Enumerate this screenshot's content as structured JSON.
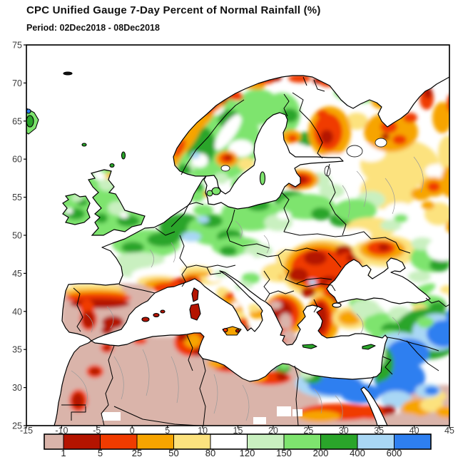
{
  "header": {
    "title": "CPC Unified Gauge 7-Day Percent of Normal Rainfall (%)",
    "period": "Period: 02Dec2018 - 08Dec2018"
  },
  "axes": {
    "x_tick_labels": [
      "-15",
      "-10",
      "-5",
      "0",
      "5",
      "10",
      "15",
      "20",
      "25",
      "30",
      "35",
      "40",
      "45"
    ],
    "y_tick_labels": [
      "75",
      "70",
      "65",
      "60",
      "55",
      "50",
      "45",
      "40",
      "35",
      "30",
      "25"
    ],
    "lon_range": [
      -15,
      45
    ],
    "lat_range": [
      25,
      75
    ]
  },
  "legend": {
    "boundary_labels": [
      "1",
      "5",
      "25",
      "50",
      "80",
      "120",
      "150",
      "200",
      "400",
      "600"
    ],
    "colors": [
      "#dab4aa",
      "#b41400",
      "#f03b00",
      "#f7a400",
      "#fce27e",
      "#ffffff",
      "#c9f0c0",
      "#7ee46e",
      "#2aa52a",
      "#a9d7f5",
      "#2e7ff0"
    ],
    "bin_ranges": [
      "<1",
      "1-5",
      "5-25",
      "25-50",
      "50-80",
      "80-120",
      "120-150",
      "150-200",
      "200-400",
      "400-600",
      ">600"
    ]
  },
  "chart_data": {
    "type": "heatmap",
    "subtype": "filled-contour geographic map",
    "title": "CPC Unified Gauge 7-Day Percent of Normal Rainfall (%)",
    "period": "02Dec2018 - 08Dec2018",
    "units": "percent of normal rainfall",
    "xlabel": "longitude (deg E)",
    "ylabel": "latitude (deg N)",
    "xlim": [
      -15,
      45
    ],
    "ylim": [
      25,
      75
    ],
    "grid": false,
    "legend_position": "bottom colorbar",
    "scale_bins": [
      {
        "range": "<1",
        "color": "#dab4aa"
      },
      {
        "range": "1-5",
        "color": "#b41400"
      },
      {
        "range": "5-25",
        "color": "#f03b00"
      },
      {
        "range": "25-50",
        "color": "#f7a400"
      },
      {
        "range": "50-80",
        "color": "#fce27e"
      },
      {
        "range": "80-120",
        "color": "#ffffff"
      },
      {
        "range": "120-150",
        "color": "#c9f0c0"
      },
      {
        "range": "150-200",
        "color": "#7ee46e"
      },
      {
        "range": "200-400",
        "color": "#2aa52a"
      },
      {
        "range": "400-600",
        "color": "#a9d7f5"
      },
      {
        "range": ">600",
        "color": "#2e7ff0"
      }
    ],
    "regions": [
      {
        "area": "Iberian Peninsula interior",
        "percent_of_normal": "<1"
      },
      {
        "area": "Northern Spain / Portugal coast strip",
        "percent_of_normal": "1-50 banded"
      },
      {
        "area": "Morocco / Algeria / Sahara",
        "percent_of_normal": "<1"
      },
      {
        "area": "Tunisia and NW Libya coast",
        "percent_of_normal": "1-25"
      },
      {
        "area": "Northern & central France",
        "percent_of_normal": "150-400"
      },
      {
        "area": "Mediterranean coast of France / Riviera",
        "percent_of_normal": "1-50"
      },
      {
        "area": "UK and Ireland",
        "percent_of_normal": "120-400"
      },
      {
        "area": "Germany / Benelux / Poland",
        "percent_of_normal": "150-400 with 400-600 pockets"
      },
      {
        "area": "Norway Atlantic coast",
        "percent_of_normal": "1-50"
      },
      {
        "area": "Scandinavian interior",
        "percent_of_normal": "120-400"
      },
      {
        "area": "Central Sweden spot",
        "percent_of_normal": "5-25"
      },
      {
        "area": "SE Finland / Karelia",
        "percent_of_normal": "5-25"
      },
      {
        "area": "Latvia (Gulf of Riga)",
        "percent_of_normal": "1-5"
      },
      {
        "area": "Lithuania / Belarus",
        "percent_of_normal": "200-400"
      },
      {
        "area": "NW Russia (Arkhangelsk)",
        "percent_of_normal": "5-50"
      },
      {
        "area": "Central European Russia",
        "percent_of_normal": "50-120"
      },
      {
        "area": "Romania / Bulgaria / Moldova / W Black Sea",
        "percent_of_normal": "1-25"
      },
      {
        "area": "Greece / Aegean / W Turkey",
        "percent_of_normal": "<1-5"
      },
      {
        "area": "Italy",
        "percent_of_normal": "25-80; Corsica-Sardinia 1-5"
      },
      {
        "area": "Central Turkey",
        "percent_of_normal": "80-150 with 25-50 patches"
      },
      {
        "area": "E Turkey / Caucasus / N Iraq",
        "percent_of_normal": ">600"
      },
      {
        "area": "Levant / Syria / Israel",
        "percent_of_normal": "200-600"
      },
      {
        "area": "Northern Egypt / Sinai",
        "percent_of_normal": "400->600"
      },
      {
        "area": "Band south of Egypt rain area",
        "percent_of_normal": "1-25"
      },
      {
        "area": "NE Libya (Cyrenaica) coast",
        "percent_of_normal": "200-600"
      }
    ]
  }
}
